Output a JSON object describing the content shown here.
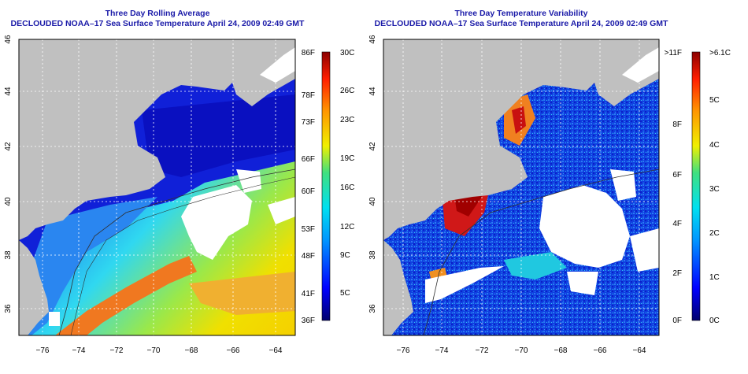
{
  "left_panel": {
    "title": "Three Day Rolling Average",
    "subtitle": "DECLOUDED NOAA–17 Sea Surface Temperature April 24, 2009 02:49 GMT",
    "lat_labels": [
      "46",
      "44",
      "42",
      "40",
      "38",
      "36"
    ],
    "lon_labels": [
      "−76",
      "−74",
      "−72",
      "−70",
      "−68",
      "−66",
      "−64"
    ],
    "colorbar_f": [
      "86F",
      "78F",
      "73F",
      "66F",
      "60F",
      "53F",
      "48F",
      "41F",
      "36F"
    ],
    "colorbar_c": [
      "30C",
      "26C",
      "23C",
      "19C",
      "16C",
      "12C",
      "9C",
      "5C"
    ]
  },
  "right_panel": {
    "title": "Three Day Temperature Variability",
    "subtitle": "DECLOUDED NOAA–17 Sea Surface Temperature April 24, 2009 02:49 GMT",
    "lat_labels": [
      "46",
      "44",
      "42",
      "40",
      "38",
      "36"
    ],
    "lon_labels": [
      "−76",
      "−74",
      "−72",
      "−70",
      "−68",
      "−66",
      "−64"
    ],
    "colorbar_f": [
      ">11F",
      "8F",
      "6F",
      "4F",
      "2F",
      "0F"
    ],
    "colorbar_c": [
      ">6.1C",
      "5C",
      "4C",
      "3C",
      "2C",
      "1C",
      "0C"
    ]
  },
  "colors": {
    "land": "#c0c0c0",
    "title": "#1a1aa8",
    "cold": "#0a1ec8",
    "warm": "#f07820"
  }
}
